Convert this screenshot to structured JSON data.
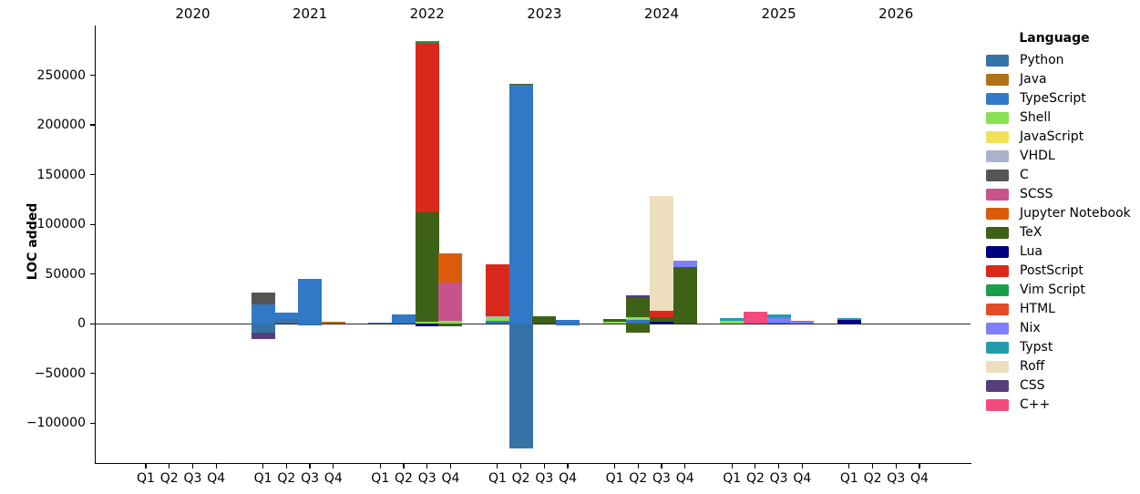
{
  "figure": {
    "ylabel": "LOC added",
    "legend_title": "Language"
  },
  "chart_data": {
    "type": "bar",
    "stacked": true,
    "title": "",
    "xlabel": "",
    "ylabel": "LOC added",
    "legend_title": "Language",
    "legend_position": "right",
    "grid": false,
    "ylim": [
      -140000,
      300000
    ],
    "y_ticks": [
      250000,
      200000,
      150000,
      100000,
      50000,
      0,
      -50000,
      -100000
    ],
    "years": [
      "2020",
      "2021",
      "2022",
      "2023",
      "2024",
      "2025",
      "2026"
    ],
    "quarters": [
      "Q1",
      "Q2",
      "Q3",
      "Q4"
    ],
    "languages": [
      {
        "name": "Python",
        "color": "#3572A5"
      },
      {
        "name": "Java",
        "color": "#B07219"
      },
      {
        "name": "TypeScript",
        "color": "#3178C6"
      },
      {
        "name": "Shell",
        "color": "#89E051"
      },
      {
        "name": "JavaScript",
        "color": "#F1E05A"
      },
      {
        "name": "VHDL",
        "color": "#ADB2CB"
      },
      {
        "name": "C",
        "color": "#555555"
      },
      {
        "name": "SCSS",
        "color": "#C6538C"
      },
      {
        "name": "Jupyter Notebook",
        "color": "#DA5B0B"
      },
      {
        "name": "TeX",
        "color": "#3D6117"
      },
      {
        "name": "Lua",
        "color": "#000080"
      },
      {
        "name": "PostScript",
        "color": "#DA291C"
      },
      {
        "name": "Vim Script",
        "color": "#199F4B"
      },
      {
        "name": "HTML",
        "color": "#E34C26"
      },
      {
        "name": "Nix",
        "color": "#7E7EFF"
      },
      {
        "name": "Typst",
        "color": "#239DAD"
      },
      {
        "name": "Roff",
        "color": "#ECDEBE"
      },
      {
        "name": "CSS",
        "color": "#563D7C"
      },
      {
        "name": "C++",
        "color": "#F34B7D"
      }
    ],
    "bars": [
      {
        "year": "2021",
        "quarter": "Q1",
        "segments": [
          {
            "language": "TypeScript",
            "value": 19500
          },
          {
            "language": "C",
            "value": 11500
          },
          {
            "language": "Python",
            "value": -9000
          },
          {
            "language": "CSS",
            "value": -6000
          }
        ]
      },
      {
        "year": "2021",
        "quarter": "Q2",
        "segments": [
          {
            "language": "Python",
            "value": 5000
          },
          {
            "language": "TypeScript",
            "value": 6000
          }
        ]
      },
      {
        "year": "2021",
        "quarter": "Q3",
        "segments": [
          {
            "language": "TypeScript",
            "value": 45000
          },
          {
            "language": "Python",
            "value": -1500
          }
        ]
      },
      {
        "year": "2021",
        "quarter": "Q4",
        "segments": [
          {
            "language": "Java",
            "value": 2500
          }
        ]
      },
      {
        "year": "2022",
        "quarter": "Q1",
        "segments": [
          {
            "language": "TypeScript",
            "value": 1500
          }
        ]
      },
      {
        "year": "2022",
        "quarter": "Q2",
        "segments": [
          {
            "language": "TypeScript",
            "value": 9500
          }
        ]
      },
      {
        "year": "2022",
        "quarter": "Q3",
        "segments": [
          {
            "language": "Shell",
            "value": 2000
          },
          {
            "language": "TeX",
            "value": 110000
          },
          {
            "language": "PostScript",
            "value": 171000
          },
          {
            "language": "Vim Script",
            "value": 1500
          },
          {
            "language": "Lua",
            "value": -2200
          }
        ]
      },
      {
        "year": "2022",
        "quarter": "Q4",
        "segments": [
          {
            "language": "Shell",
            "value": 3000
          },
          {
            "language": "SCSS",
            "value": 38500
          },
          {
            "language": "Jupyter Notebook",
            "value": 29000
          },
          {
            "language": "TeX",
            "value": -2700
          }
        ]
      },
      {
        "year": "2023",
        "quarter": "Q1",
        "segments": [
          {
            "language": "TypeScript",
            "value": 2600
          },
          {
            "language": "Shell",
            "value": 3200
          },
          {
            "language": "VHDL",
            "value": 1800
          },
          {
            "language": "PostScript",
            "value": 52500
          }
        ]
      },
      {
        "year": "2023",
        "quarter": "Q2",
        "segments": [
          {
            "language": "TypeScript",
            "value": 240000
          },
          {
            "language": "TeX",
            "value": 1000
          },
          {
            "language": "Python",
            "value": -125500
          }
        ]
      },
      {
        "year": "2023",
        "quarter": "Q3",
        "segments": [
          {
            "language": "TeX",
            "value": 7500
          }
        ]
      },
      {
        "year": "2023",
        "quarter": "Q4",
        "segments": [
          {
            "language": "TypeScript",
            "value": 4000
          },
          {
            "language": "Python",
            "value": -2000
          }
        ]
      },
      {
        "year": "2024",
        "quarter": "Q1",
        "segments": [
          {
            "language": "Shell",
            "value": 2000
          },
          {
            "language": "TeX",
            "value": 3000
          }
        ]
      },
      {
        "year": "2024",
        "quarter": "Q2",
        "segments": [
          {
            "language": "Python",
            "value": 1800
          },
          {
            "language": "TypeScript",
            "value": 2000
          },
          {
            "language": "Shell",
            "value": 2500
          },
          {
            "language": "TeX",
            "value": 20500
          },
          {
            "language": "CSS",
            "value": 2200
          },
          {
            "language": "TeX",
            "value": -8500
          }
        ]
      },
      {
        "year": "2024",
        "quarter": "Q3",
        "segments": [
          {
            "language": "Lua",
            "value": 1800
          },
          {
            "language": "TeX",
            "value": 4900
          },
          {
            "language": "PostScript",
            "value": 6100
          },
          {
            "language": "Roff",
            "value": 116000
          }
        ]
      },
      {
        "year": "2024",
        "quarter": "Q4",
        "segments": [
          {
            "language": "TeX",
            "value": 57500
          },
          {
            "language": "Nix",
            "value": 6100
          }
        ]
      },
      {
        "year": "2025",
        "quarter": "Q1",
        "segments": [
          {
            "language": "Shell",
            "value": 3200
          },
          {
            "language": "Typst",
            "value": 2500
          }
        ]
      },
      {
        "year": "2025",
        "quarter": "Q2",
        "segments": [
          {
            "language": "C++",
            "value": 12000
          }
        ]
      },
      {
        "year": "2025",
        "quarter": "Q3",
        "segments": [
          {
            "language": "TypeScript",
            "value": 900
          },
          {
            "language": "Nix",
            "value": 5100
          },
          {
            "language": "Typst",
            "value": 3700
          }
        ]
      },
      {
        "year": "2025",
        "quarter": "Q4",
        "segments": [
          {
            "language": "Nix",
            "value": 2500
          },
          {
            "language": "C++",
            "value": 500
          }
        ]
      },
      {
        "year": "2026",
        "quarter": "Q1",
        "segments": [
          {
            "language": "Lua",
            "value": 3600
          },
          {
            "language": "Typst",
            "value": 2400
          }
        ]
      }
    ]
  }
}
